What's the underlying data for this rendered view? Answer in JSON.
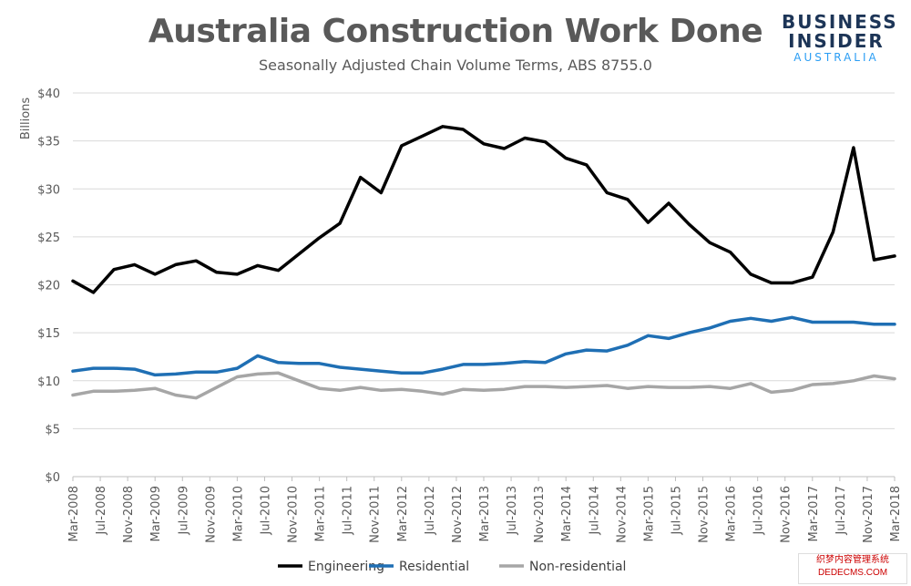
{
  "title": "Australia Construction Work Done",
  "subtitle": "Seasonally Adjusted Chain Volume Terms, ABS 8755.0",
  "logo": {
    "line1": "BUSINESS",
    "line2": "INSIDER",
    "line3": "AUSTRALIA"
  },
  "watermark": {
    "line1": "织梦内容管理系统",
    "line2": "DEDECMS.COM"
  },
  "colors": {
    "engineering": "#000000",
    "residential": "#1f6fb4",
    "non_residential": "#a6a6a6",
    "grid": "#d9d9d9",
    "axis_text": "#595959"
  },
  "chart_data": {
    "type": "line",
    "ylabel": "Billions",
    "ylim": [
      0,
      40
    ],
    "y_ticks": [
      "$0",
      "$5",
      "$10",
      "$15",
      "$20",
      "$25",
      "$30",
      "$35",
      "$40"
    ],
    "y_tick_values": [
      0,
      5,
      10,
      15,
      20,
      25,
      30,
      35,
      40
    ],
    "x": [
      "Mar-2008",
      "Jun-2008",
      "Sep-2008",
      "Dec-2008",
      "Mar-2009",
      "Jun-2009",
      "Sep-2009",
      "Dec-2009",
      "Mar-2010",
      "Jun-2010",
      "Sep-2010",
      "Dec-2010",
      "Mar-2011",
      "Jun-2011",
      "Sep-2011",
      "Dec-2011",
      "Mar-2012",
      "Jun-2012",
      "Sep-2012",
      "Dec-2012",
      "Mar-2013",
      "Jun-2013",
      "Sep-2013",
      "Dec-2013",
      "Mar-2014",
      "Jun-2014",
      "Sep-2014",
      "Dec-2014",
      "Mar-2015",
      "Jun-2015",
      "Sep-2015",
      "Dec-2015",
      "Mar-2016",
      "Jun-2016",
      "Sep-2016",
      "Dec-2016",
      "Mar-2017",
      "Jun-2017",
      "Sep-2017",
      "Dec-2017",
      "Mar-2018"
    ],
    "x_tick_labels": [
      "Mar-2008",
      "Jul-2008",
      "Nov-2008",
      "Mar-2009",
      "Jul-2009",
      "Nov-2009",
      "Mar-2010",
      "Jul-2010",
      "Nov-2010",
      "Mar-2011",
      "Jul-2011",
      "Nov-2011",
      "Mar-2012",
      "Jul-2012",
      "Nov-2012",
      "Mar-2013",
      "Jul-2013",
      "Nov-2013",
      "Mar-2014",
      "Jul-2014",
      "Nov-2014",
      "Mar-2015",
      "Jul-2015",
      "Nov-2015",
      "Mar-2016",
      "Jul-2016",
      "Nov-2016",
      "Mar-2017",
      "Jul-2017",
      "Nov-2017",
      "Mar-2018"
    ],
    "series": [
      {
        "name": "Engineering",
        "color": "#000000",
        "values": [
          20.4,
          19.2,
          21.6,
          22.1,
          21.1,
          22.1,
          22.5,
          21.3,
          21.1,
          22.0,
          21.5,
          23.2,
          24.9,
          26.4,
          31.2,
          29.6,
          34.5,
          35.5,
          36.5,
          36.2,
          34.7,
          34.2,
          35.3,
          34.9,
          33.2,
          32.5,
          29.6,
          28.9,
          26.5,
          28.5,
          26.3,
          24.4,
          23.4,
          21.1,
          20.2,
          20.2,
          20.8,
          25.5,
          34.3,
          22.6,
          23.0
        ]
      },
      {
        "name": "Residential",
        "color": "#1f6fb4",
        "values": [
          11.0,
          11.3,
          11.3,
          11.2,
          10.6,
          10.7,
          10.9,
          10.9,
          11.3,
          12.6,
          11.9,
          11.8,
          11.8,
          11.4,
          11.2,
          11.0,
          10.8,
          10.8,
          11.2,
          11.7,
          11.7,
          11.8,
          12.0,
          11.9,
          12.8,
          13.2,
          13.1,
          13.7,
          14.7,
          14.4,
          15.0,
          15.5,
          16.2,
          16.5,
          16.2,
          16.6,
          16.1,
          16.1,
          16.1,
          15.9,
          15.9
        ]
      },
      {
        "name": "Non-residential",
        "color": "#a6a6a6",
        "values": [
          8.5,
          8.9,
          8.9,
          9.0,
          9.2,
          8.5,
          8.2,
          9.3,
          10.4,
          10.7,
          10.8,
          10.0,
          9.2,
          9.0,
          9.3,
          9.0,
          9.1,
          8.9,
          8.6,
          9.1,
          9.0,
          9.1,
          9.4,
          9.4,
          9.3,
          9.4,
          9.5,
          9.2,
          9.4,
          9.3,
          9.3,
          9.4,
          9.2,
          9.7,
          8.8,
          9.0,
          9.6,
          9.7,
          10.0,
          10.5,
          10.2
        ]
      }
    ],
    "legend": [
      "Engineering",
      "Residential",
      "Non-residential"
    ],
    "legend_position": "bottom",
    "grid": true
  }
}
